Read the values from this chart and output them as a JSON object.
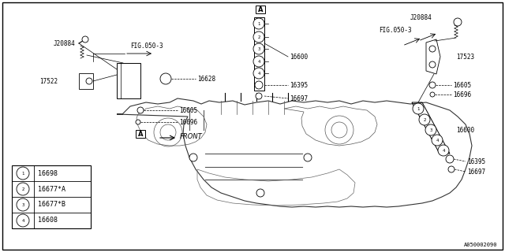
{
  "bg_color": "#ffffff",
  "line_color": "#000000",
  "part_number_bottom": "A050002090",
  "legend": [
    {
      "num": "1",
      "part": "16698"
    },
    {
      "num": "2",
      "part": "16677*A"
    },
    {
      "num": "3",
      "part": "16677*B"
    },
    {
      "num": "4",
      "part": "16608"
    }
  ],
  "font_size": 5.5,
  "fig_width": 6.4,
  "fig_height": 3.2,
  "dpi": 100
}
